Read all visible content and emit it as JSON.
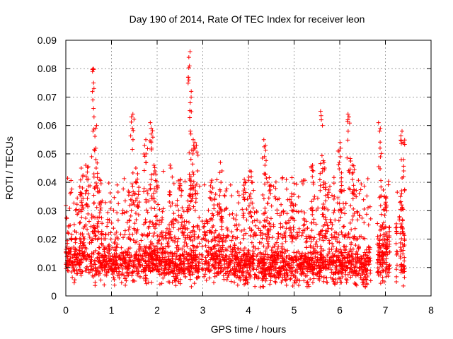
{
  "chart_data": {
    "type": "scatter",
    "title": "Day 190 of 2014, Rate Of TEC Index for receiver leon",
    "xlabel": "GPS time / hours",
    "ylabel": "ROTI / TECUs",
    "xlim": [
      0,
      8
    ],
    "ylim": [
      0,
      0.09
    ],
    "xticks": [
      0,
      1,
      2,
      3,
      4,
      5,
      6,
      7,
      8
    ],
    "xtick_labels": [
      "0",
      "1",
      "2",
      "3",
      "4",
      "5",
      "6",
      "7",
      "8"
    ],
    "yticks": [
      0,
      0.01,
      0.02,
      0.03,
      0.04,
      0.05,
      0.06,
      0.07,
      0.08,
      0.09
    ],
    "ytick_labels": [
      "0",
      "0.01",
      "0.02",
      "0.03",
      "0.04",
      "0.05",
      "0.06",
      "0.07",
      "0.08",
      "0.09"
    ],
    "grid": true,
    "marker": "plus",
    "color": "#ff0000",
    "data_gaps": [
      [
        2.93,
        2.97
      ],
      [
        6.68,
        6.82
      ],
      [
        7.1,
        7.22
      ],
      [
        7.26,
        7.32
      ]
    ],
    "x_end": 7.42,
    "baseline": {
      "x": [
        0,
        0.3,
        0.6,
        1.0,
        1.5,
        2.0,
        2.5,
        2.9,
        3.2,
        3.6,
        4.0,
        4.5,
        5.0,
        5.5,
        6.0,
        6.5,
        7.0,
        7.42
      ],
      "mean": [
        0.012,
        0.013,
        0.012,
        0.011,
        0.011,
        0.012,
        0.011,
        0.012,
        0.013,
        0.011,
        0.011,
        0.011,
        0.01,
        0.011,
        0.011,
        0.01,
        0.014,
        0.012
      ],
      "spread": [
        0.004,
        0.004,
        0.005,
        0.004,
        0.004,
        0.005,
        0.004,
        0.004,
        0.005,
        0.004,
        0.004,
        0.004,
        0.004,
        0.004,
        0.004,
        0.004,
        0.005,
        0.005
      ]
    },
    "spikes": [
      {
        "x": 0.35,
        "y": [
          0.038,
          0.042,
          0.045
        ]
      },
      {
        "x": 0.45,
        "y": [
          0.036,
          0.041,
          0.046
        ]
      },
      {
        "x": 0.6,
        "y": [
          0.073,
          0.075,
          0.08,
          0.079,
          0.069,
          0.066,
          0.063,
          0.058
        ]
      },
      {
        "x": 0.66,
        "y": [
          0.06,
          0.059,
          0.052,
          0.048,
          0.045
        ]
      },
      {
        "x": 0.75,
        "y": [
          0.041,
          0.037
        ]
      },
      {
        "x": 1.46,
        "y": [
          0.064,
          0.063,
          0.059,
          0.055
        ]
      },
      {
        "x": 1.55,
        "y": [
          0.04,
          0.045,
          0.043
        ]
      },
      {
        "x": 1.75,
        "y": [
          0.055,
          0.053,
          0.05,
          0.047
        ]
      },
      {
        "x": 1.87,
        "y": [
          0.061,
          0.059,
          0.057,
          0.052
        ]
      },
      {
        "x": 1.95,
        "y": [
          0.046,
          0.044
        ]
      },
      {
        "x": 2.3,
        "y": [
          0.046,
          0.045
        ]
      },
      {
        "x": 2.5,
        "y": [
          0.041,
          0.039
        ]
      },
      {
        "x": 2.7,
        "y": [
          0.086,
          0.084,
          0.081,
          0.077,
          0.076
        ]
      },
      {
        "x": 2.74,
        "y": [
          0.072,
          0.07,
          0.068,
          0.058,
          0.057
        ]
      },
      {
        "x": 2.8,
        "y": [
          0.055,
          0.053,
          0.052,
          0.05
        ]
      },
      {
        "x": 2.85,
        "y": [
          0.053,
          0.052
        ]
      },
      {
        "x": 3.2,
        "y": [
          0.04,
          0.038
        ]
      },
      {
        "x": 3.4,
        "y": [
          0.047,
          0.044,
          0.04
        ]
      },
      {
        "x": 3.9,
        "y": [
          0.041,
          0.039
        ]
      },
      {
        "x": 4.05,
        "y": [
          0.044,
          0.042,
          0.04
        ]
      },
      {
        "x": 4.35,
        "y": [
          0.055,
          0.053,
          0.049,
          0.046,
          0.043
        ]
      },
      {
        "x": 4.45,
        "y": [
          0.039,
          0.037
        ]
      },
      {
        "x": 4.95,
        "y": [
          0.036,
          0.035
        ]
      },
      {
        "x": 5.4,
        "y": [
          0.046,
          0.044,
          0.042
        ]
      },
      {
        "x": 5.6,
        "y": [
          0.065,
          0.062,
          0.06
        ]
      },
      {
        "x": 5.66,
        "y": [
          0.047,
          0.045
        ]
      },
      {
        "x": 6.0,
        "y": [
          0.054,
          0.052,
          0.051,
          0.049,
          0.047
        ]
      },
      {
        "x": 6.2,
        "y": [
          0.064,
          0.063,
          0.062,
          0.058
        ]
      },
      {
        "x": 6.28,
        "y": [
          0.046,
          0.043,
          0.041
        ]
      },
      {
        "x": 6.87,
        "y": [
          0.061,
          0.059,
          0.058
        ]
      },
      {
        "x": 7.0,
        "y": [
          0.035,
          0.033,
          0.031
        ]
      },
      {
        "x": 7.38,
        "y": [
          0.058,
          0.054,
          0.048,
          0.044,
          0.042
        ]
      },
      {
        "x": 7.35,
        "y": [
          0.035,
          0.032
        ]
      }
    ]
  }
}
